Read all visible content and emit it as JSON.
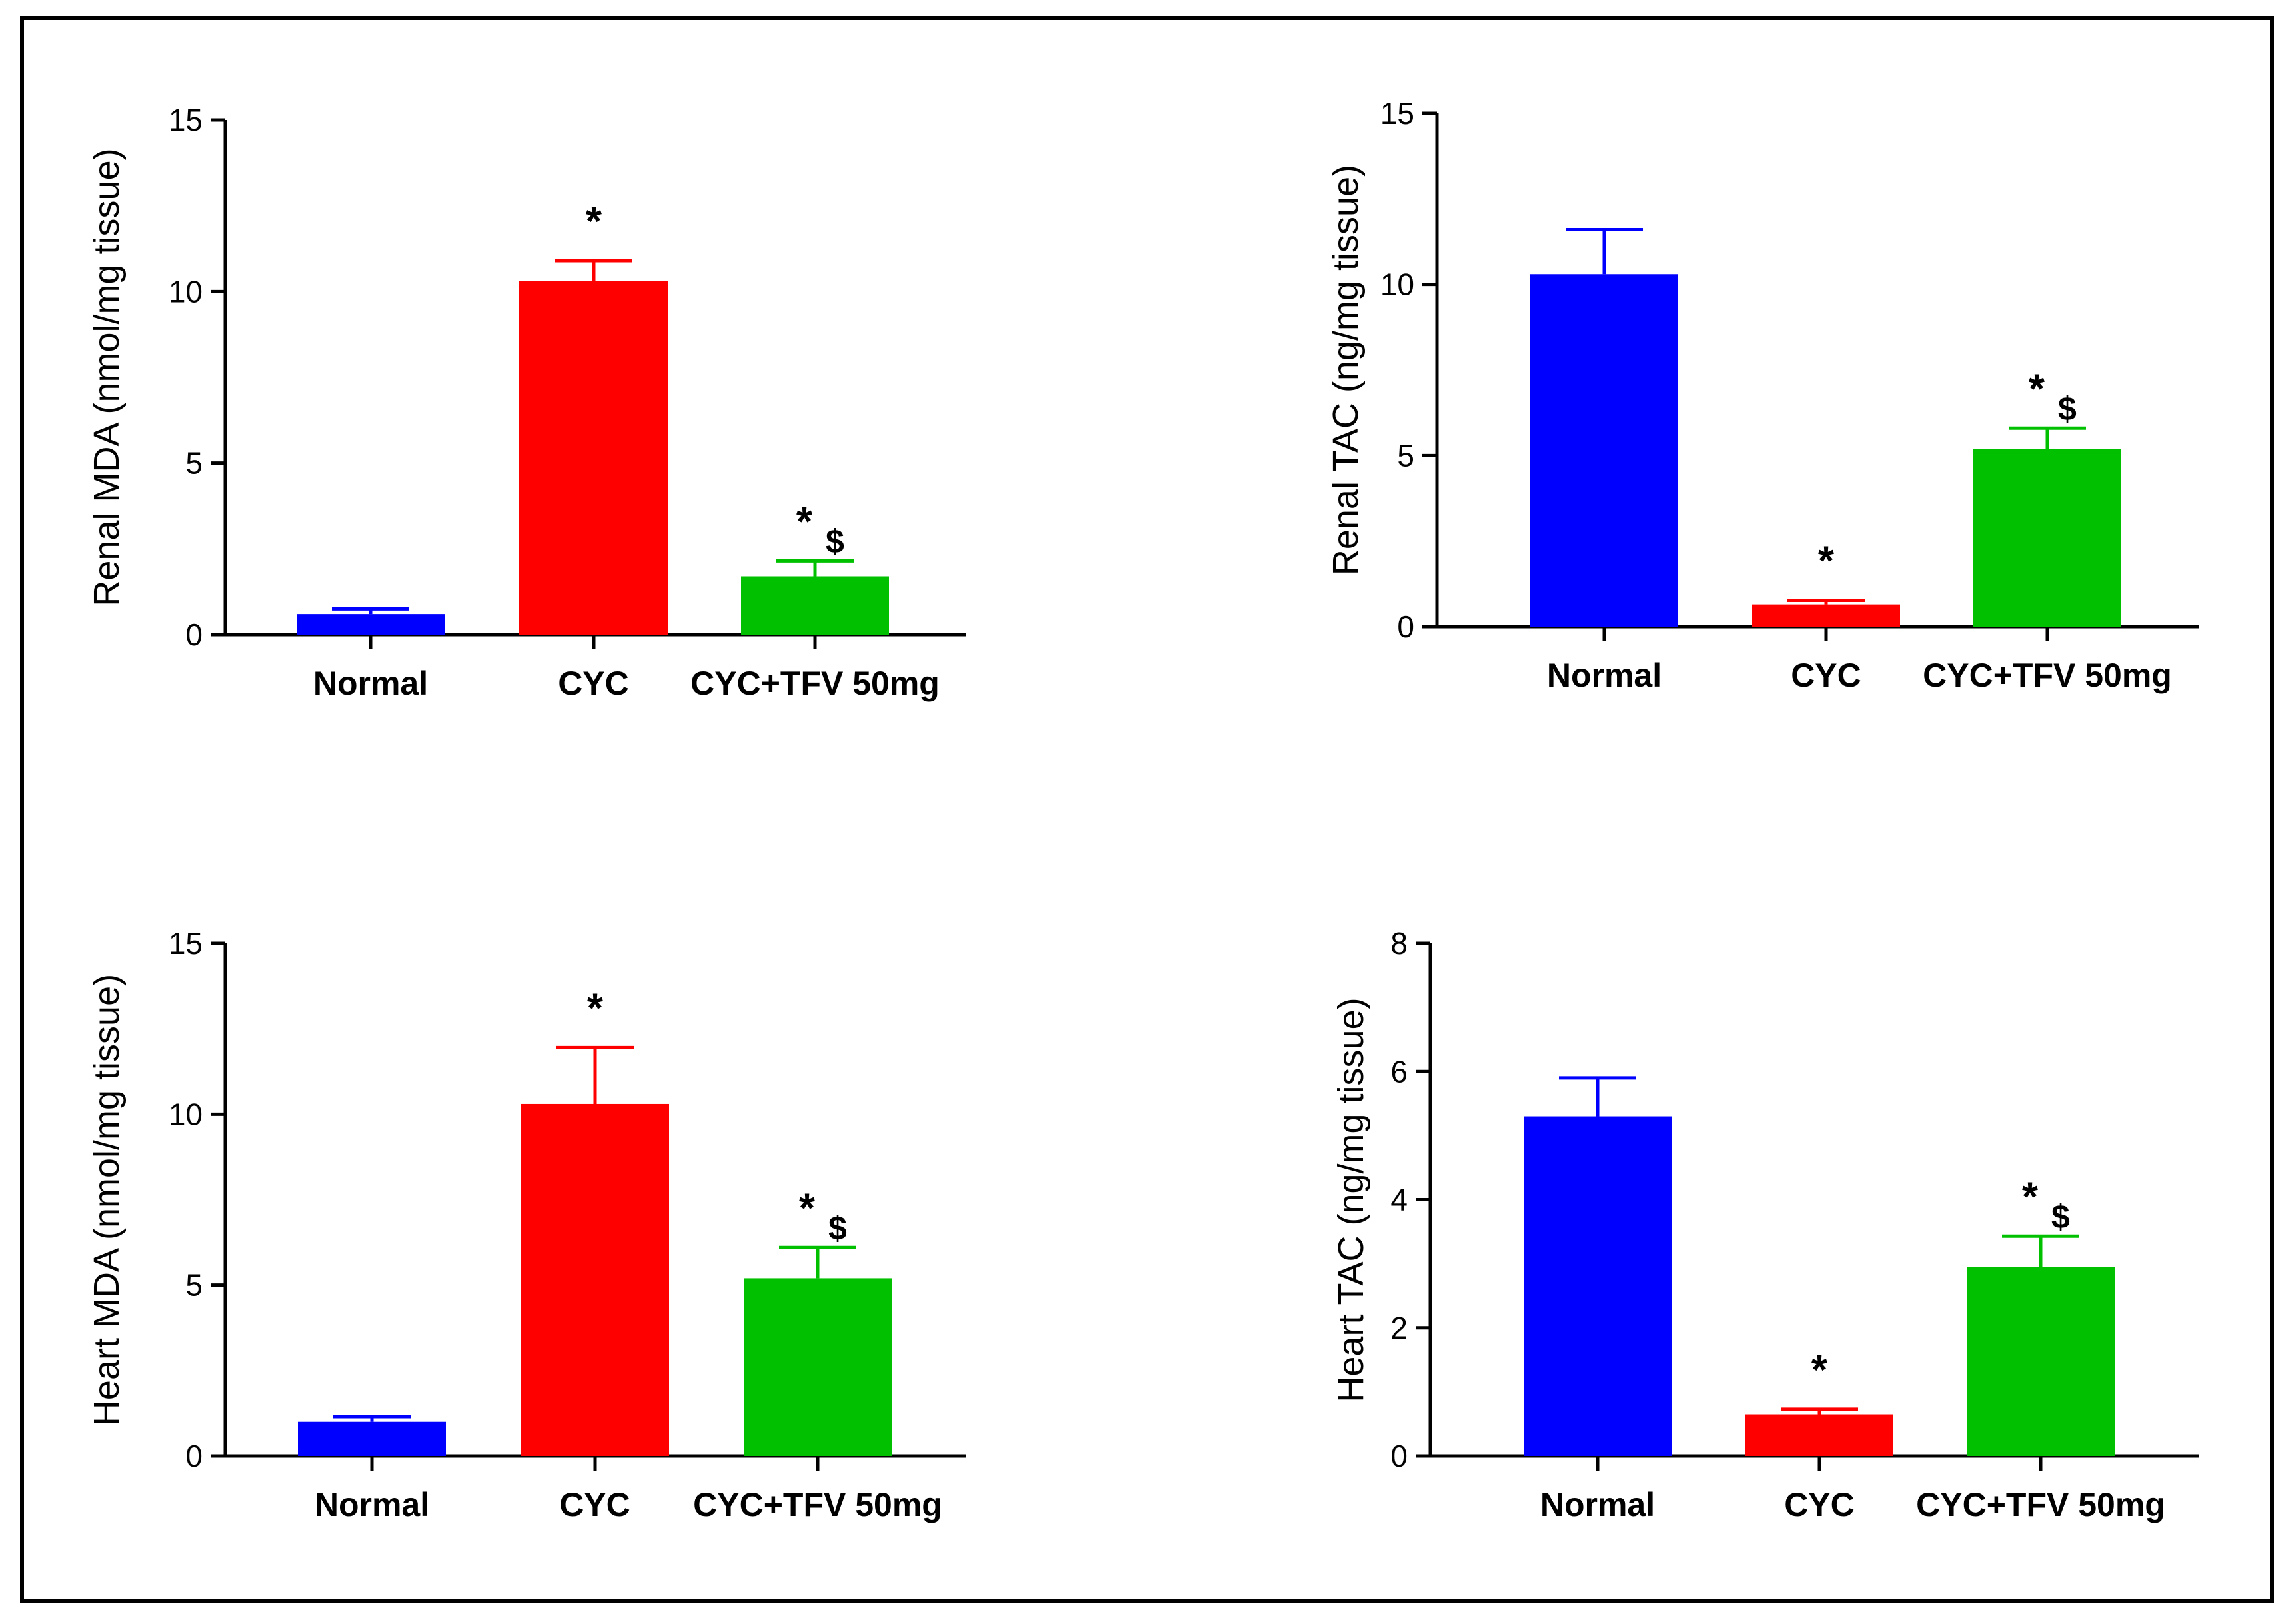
{
  "chart_data": [
    {
      "type": "bar",
      "panel": "top-left",
      "title": "",
      "xlabel": "",
      "ylabel": "Renal MDA (nmol/mg tissue)",
      "ylim": [
        0,
        15
      ],
      "yticks": [
        0,
        5,
        10,
        15
      ],
      "categories": [
        "Normal",
        "CYC",
        "CYC+TFV 50mg"
      ],
      "values": [
        0.6,
        10.3,
        1.7
      ],
      "errors": [
        0.15,
        0.6,
        0.45
      ],
      "colors": [
        "#0000ff",
        "#ff0000",
        "#00c000"
      ],
      "annotations": [
        {
          "star": "",
          "dollar": ""
        },
        {
          "star": "*",
          "dollar": ""
        },
        {
          "star": "*",
          "dollar": "$"
        }
      ]
    },
    {
      "type": "bar",
      "panel": "top-right",
      "title": "",
      "xlabel": "",
      "ylabel": "Renal TAC (ng/mg tissue)",
      "ylim": [
        0,
        15
      ],
      "yticks": [
        0,
        5,
        10,
        15
      ],
      "categories": [
        "Normal",
        "CYC",
        "CYC+TFV 50mg"
      ],
      "values": [
        10.3,
        0.65,
        5.2
      ],
      "errors": [
        1.3,
        0.12,
        0.6
      ],
      "colors": [
        "#0000ff",
        "#ff0000",
        "#00c000"
      ],
      "annotations": [
        {
          "star": "",
          "dollar": ""
        },
        {
          "star": "*",
          "dollar": ""
        },
        {
          "star": "*",
          "dollar": "$"
        }
      ]
    },
    {
      "type": "bar",
      "panel": "bottom-left",
      "title": "",
      "xlabel": "",
      "ylabel": "Heart MDA (nmol/mg tissue)",
      "ylim": [
        0,
        15
      ],
      "yticks": [
        0,
        5,
        10,
        15
      ],
      "categories": [
        "Normal",
        "CYC",
        "CYC+TFV 50mg"
      ],
      "values": [
        1.0,
        10.3,
        5.2
      ],
      "errors": [
        0.15,
        1.65,
        0.9
      ],
      "colors": [
        "#0000ff",
        "#ff0000",
        "#00c000"
      ],
      "annotations": [
        {
          "star": "",
          "dollar": ""
        },
        {
          "star": "*",
          "dollar": ""
        },
        {
          "star": "*",
          "dollar": "$"
        }
      ]
    },
    {
      "type": "bar",
      "panel": "bottom-right",
      "title": "",
      "xlabel": "",
      "ylabel": "Heart TAC (ng/mg tissue)",
      "ylim": [
        0,
        8
      ],
      "yticks": [
        0,
        2,
        4,
        6,
        8
      ],
      "categories": [
        "Normal",
        "CYC",
        "CYC+TFV 50mg"
      ],
      "values": [
        5.3,
        0.65,
        2.95
      ],
      "errors": [
        0.6,
        0.08,
        0.48
      ],
      "colors": [
        "#0000ff",
        "#ff0000",
        "#00c000"
      ],
      "annotations": [
        {
          "star": "",
          "dollar": ""
        },
        {
          "star": "*",
          "dollar": ""
        },
        {
          "star": "*",
          "dollar": "$"
        }
      ]
    }
  ]
}
